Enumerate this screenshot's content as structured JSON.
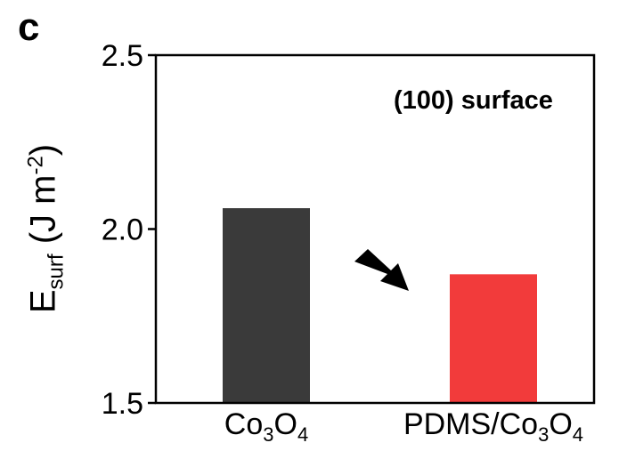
{
  "panel_label": "c",
  "chart_data": {
    "type": "bar",
    "categories": [
      "Co3O4",
      "PDMS/Co3O4"
    ],
    "category_parts": [
      [
        {
          "t": "Co"
        },
        {
          "t": "3",
          "sub": true
        },
        {
          "t": "O"
        },
        {
          "t": "4",
          "sub": true
        }
      ],
      [
        {
          "t": "PDMS/Co"
        },
        {
          "t": "3",
          "sub": true
        },
        {
          "t": "O"
        },
        {
          "t": "4",
          "sub": true
        }
      ]
    ],
    "values": [
      2.06,
      1.87
    ],
    "colors": [
      "#3a3a3a",
      "#f23b3b"
    ],
    "ylabel": {
      "main": "E",
      "sub": "surf",
      "unit_pre": " (J m",
      "sup": "-2",
      "unit_post": ")"
    },
    "ylim": [
      1.5,
      2.5
    ],
    "yticks": [
      1.5,
      2.0,
      2.5
    ],
    "ytick_labels": [
      "1.5",
      "2.0",
      "2.5"
    ],
    "annotation": "(100) surface",
    "arrow": "down-right"
  }
}
